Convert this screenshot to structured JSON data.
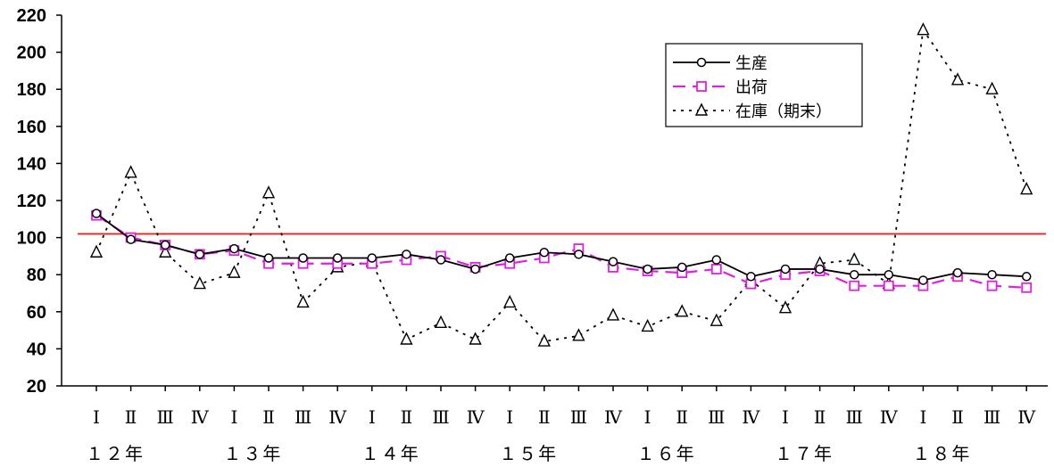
{
  "chart_data": {
    "type": "line",
    "title": "",
    "xlabel": "",
    "ylabel": "",
    "ylim": [
      20,
      220
    ],
    "yticks": [
      20,
      40,
      60,
      80,
      100,
      120,
      140,
      160,
      180,
      200,
      220
    ],
    "categories": [
      "Ⅰ",
      "Ⅱ",
      "Ⅲ",
      "Ⅳ",
      "Ⅰ",
      "Ⅱ",
      "Ⅲ",
      "Ⅳ",
      "Ⅰ",
      "Ⅱ",
      "Ⅲ",
      "Ⅳ",
      "Ⅰ",
      "Ⅱ",
      "Ⅲ",
      "Ⅳ",
      "Ⅰ",
      "Ⅱ",
      "Ⅲ",
      "Ⅳ",
      "Ⅰ",
      "Ⅱ",
      "Ⅲ",
      "Ⅳ",
      "Ⅰ",
      "Ⅱ",
      "Ⅲ",
      "Ⅳ"
    ],
    "years": [
      "１２年",
      "１３年",
      "１４年",
      "１５年",
      "１６年",
      "１７年",
      "１８年"
    ],
    "reference_line": {
      "value": 102,
      "color": "#e8251f"
    },
    "legend_position": "top-right",
    "grid": false,
    "series": [
      {
        "name": "生産",
        "color": "#000000",
        "style": "solid",
        "marker": "circle",
        "values": [
          113,
          99,
          96,
          91,
          94,
          89,
          89,
          89,
          89,
          91,
          88,
          83,
          89,
          92,
          91,
          87,
          83,
          84,
          88,
          79,
          83,
          83,
          80,
          80,
          77,
          81,
          80,
          79
        ]
      },
      {
        "name": "出荷",
        "color": "#e020e0",
        "style": "dashed",
        "marker": "square",
        "values": [
          112,
          100,
          96,
          91,
          93,
          86,
          86,
          86,
          86,
          88,
          90,
          84,
          86,
          89,
          94,
          84,
          82,
          81,
          83,
          75,
          80,
          82,
          74,
          74,
          74,
          79,
          74,
          73
        ]
      },
      {
        "name": "在庫（期末）",
        "color": "#000000",
        "style": "dotted",
        "marker": "triangle",
        "values": [
          92,
          135,
          92,
          75,
          81,
          124,
          65,
          84,
          87,
          45,
          54,
          45,
          65,
          44,
          47,
          58,
          52,
          60,
          55,
          77,
          62,
          86,
          88,
          75,
          212,
          185,
          180,
          126
        ]
      }
    ]
  }
}
